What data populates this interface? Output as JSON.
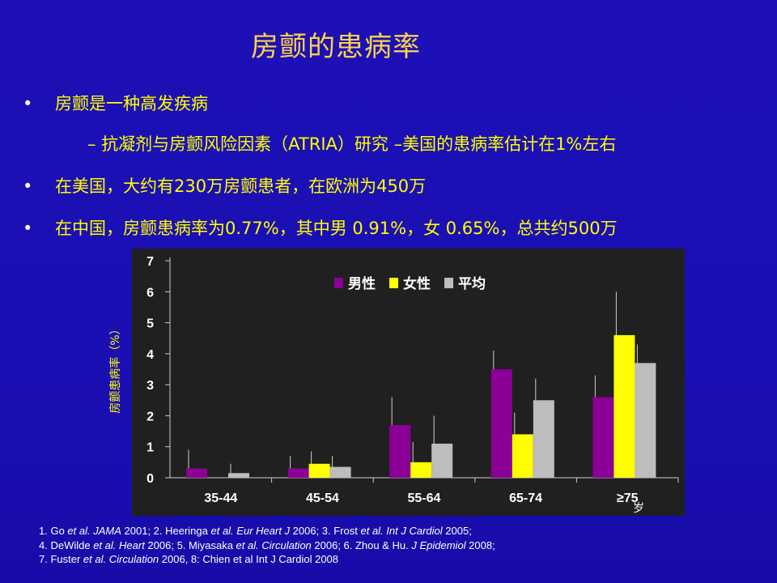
{
  "slide": {
    "title": "房颤的患病率",
    "bullets": [
      {
        "marker": "•",
        "text": "房颤是一种高发疾病"
      },
      {
        "marker": "–",
        "text": "抗凝剂与房颤风险因素（ATRIA）研究 –美国的患病率估计在1%左右"
      },
      {
        "marker": "•",
        "text": "在美国，大约有230万房颤患者，在欧洲为450万"
      },
      {
        "marker": "•",
        "text": "在中国，房颤患病率为0.77%，其中男 0.91%，女 0.65%，总共约500万"
      }
    ],
    "references": [
      "1. Go et al. JAMA 2001; 2. Heeringa et al. Eur Heart J 2006; 3. Frost et al. Int J Cardiol 2005;",
      "4. DeWilde et al. Heart 2006; 5. Miyasaka et al. Circulation 2006; 6. Zhou & Hu. J Epidemiol 2008;",
      "7. Fuster et al. Circulation 2006, 8: Chien et al Int J Cardiol 2008"
    ]
  },
  "chart_data": {
    "type": "bar",
    "title": "",
    "ylabel": "房颤患病率（%）",
    "xunit": "岁",
    "ylim": [
      0,
      7
    ],
    "yticks": [
      "0",
      "1",
      "2",
      "3",
      "4",
      "5",
      "6",
      "7"
    ],
    "grid": false,
    "legend_position": "top-center",
    "categories": [
      "35-44",
      "45-54",
      "55-64",
      "65-74",
      "≥75"
    ],
    "series": [
      {
        "name": "男性",
        "color": "#8b0096",
        "values": [
          0.3,
          0.3,
          1.7,
          3.5,
          2.6
        ],
        "error_upper": [
          0.9,
          0.7,
          2.6,
          4.1,
          3.3
        ]
      },
      {
        "name": "女性",
        "color": "#ffff00",
        "values": [
          0.0,
          0.45,
          0.5,
          1.4,
          4.6
        ],
        "error_upper": [
          0.0,
          0.85,
          1.15,
          2.1,
          6.0
        ]
      },
      {
        "name": "平均",
        "color": "#bdbdbd",
        "values": [
          0.15,
          0.35,
          1.1,
          2.5,
          3.7
        ],
        "error_upper": [
          0.45,
          0.7,
          2.0,
          3.2,
          4.3
        ]
      }
    ]
  }
}
